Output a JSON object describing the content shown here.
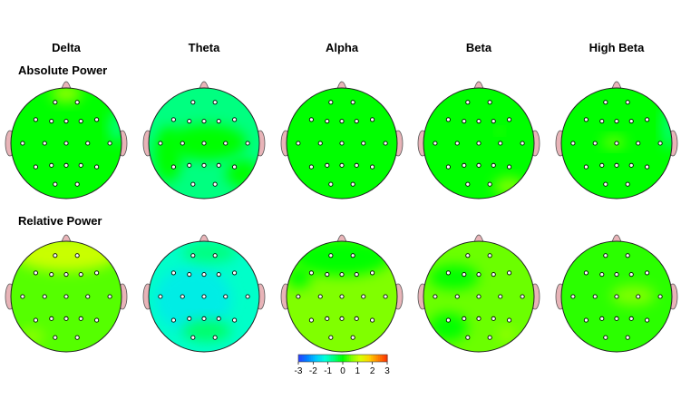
{
  "chart_data": {
    "type": "heatmap",
    "subtype": "eeg-topographic-map-grid",
    "columns": [
      "Delta",
      "Theta",
      "Alpha",
      "Beta",
      "High Beta"
    ],
    "rows": [
      "Absolute Power",
      "Relative Power"
    ],
    "colorbar": {
      "ticks": [
        "-3",
        "-2",
        "-1",
        "0",
        "1",
        "2",
        "3"
      ],
      "range": [
        -3,
        3
      ],
      "colors": [
        "#2a3dff",
        "#0080ff",
        "#00c8ff",
        "#00ffd8",
        "#00ff80",
        "#00ff00",
        "#80ff00",
        "#d8ff00",
        "#ffd000",
        "#ff8000",
        "#ff3000"
      ]
    },
    "base_z": [
      [
        0.0,
        -0.6,
        0.0,
        0.0,
        0.0
      ],
      [
        0.4,
        -1.1,
        0.6,
        0.5,
        0.2
      ]
    ],
    "electrodes": [
      "Fp1",
      "Fp2",
      "F7",
      "F3",
      "Fz",
      "F4",
      "F8",
      "T3",
      "C3",
      "Cz",
      "C4",
      "T4",
      "T5",
      "P3",
      "Pz",
      "P4",
      "T6",
      "O1",
      "O2"
    ],
    "regions": [
      [
        [
          {
            "z": 0.7,
            "desc": "frontal pole"
          },
          {
            "z": -0.6,
            "desc": "right temporal"
          }
        ],
        [
          {
            "z": 0.0,
            "desc": "center"
          },
          {
            "z": 0.0,
            "desc": "lower right"
          },
          {
            "z": 0.0,
            "desc": "lower left"
          }
        ],
        [],
        [
          {
            "z": 0.6,
            "desc": "lower right"
          },
          {
            "z": 0.5,
            "desc": "small right-center spot"
          }
        ],
        [
          {
            "z": -0.6,
            "desc": "right edge"
          },
          {
            "z": 0.5,
            "desc": "center-left"
          }
        ]
      ],
      [
        [
          {
            "z": 1.1,
            "desc": "frontal"
          },
          {
            "z": 0.7,
            "desc": "lower left"
          }
        ],
        [
          {
            "z": -1.4,
            "desc": "left-center"
          },
          {
            "z": -0.5,
            "desc": "lower center"
          },
          {
            "z": -0.6,
            "desc": "top"
          }
        ],
        [
          {
            "z": 0.0,
            "desc": "top"
          },
          {
            "z": 0.0,
            "desc": "left upper"
          }
        ],
        [
          {
            "z": 0.0,
            "desc": "upper left"
          },
          {
            "z": 0.0,
            "desc": "lower left"
          },
          {
            "z": 0.9,
            "desc": "lower right"
          }
        ],
        [
          {
            "z": 0.6,
            "desc": "right-center"
          }
        ]
      ]
    ]
  }
}
